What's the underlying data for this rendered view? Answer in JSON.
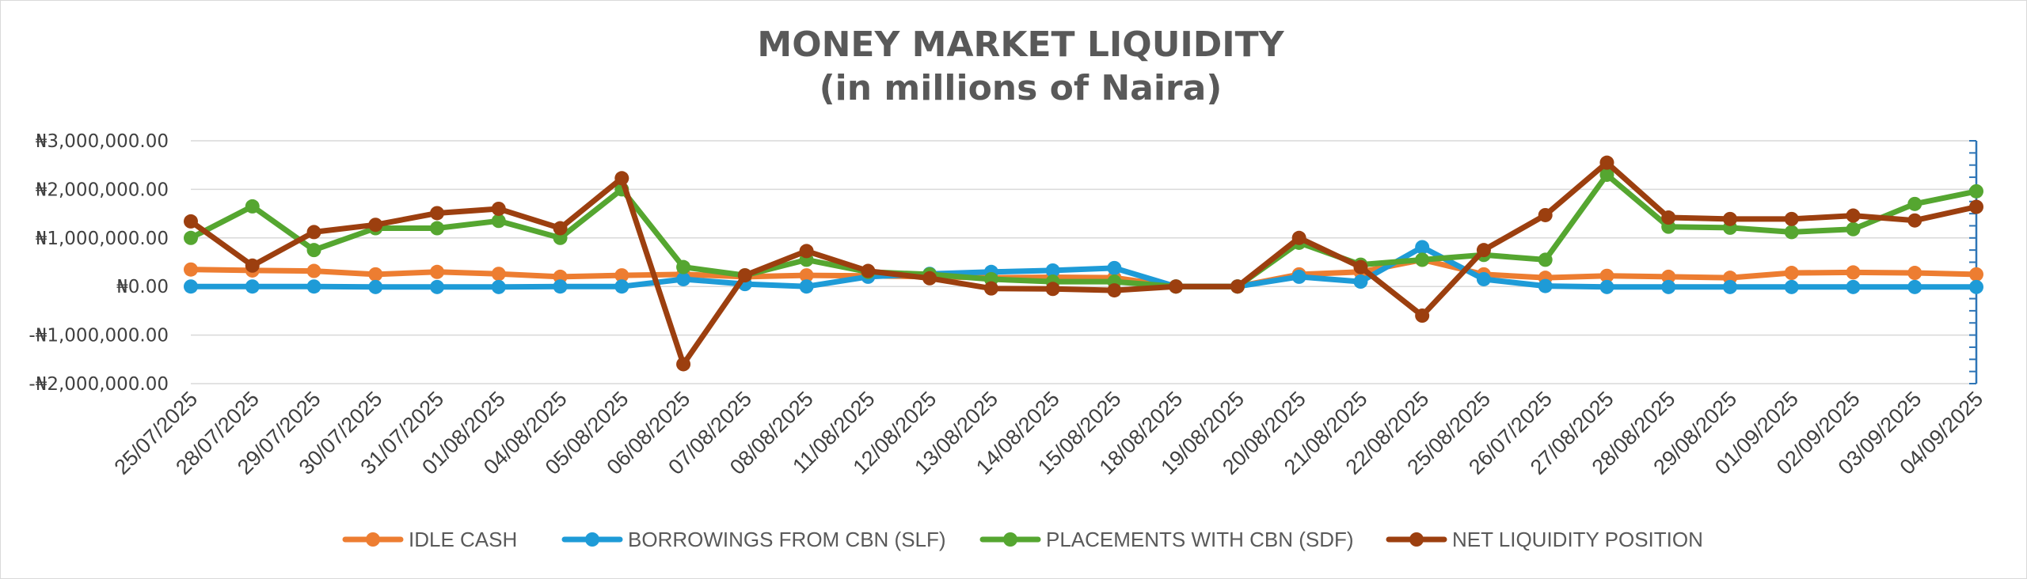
{
  "chart_data": {
    "type": "line",
    "title": "MONEY MARKET LIQUIDITY",
    "subtitle": "(in millions of Naira)",
    "xlabel": "",
    "ylabel": "",
    "ylim": [
      -2000000,
      3000000
    ],
    "grid": true,
    "legend_position": "bottom",
    "y_ticks": [
      {
        "value": 3000000,
        "label": "₦3,000,000.00"
      },
      {
        "value": 2000000,
        "label": "₦2,000,000.00"
      },
      {
        "value": 1000000,
        "label": "₦1,000,000.00"
      },
      {
        "value": 0,
        "label": "₦0.00"
      },
      {
        "value": -1000000,
        "label": "-₦1,000,000.00"
      },
      {
        "value": -2000000,
        "label": "-₦2,000,000.00"
      }
    ],
    "categories": [
      "25/07/2025",
      "28/07/2025",
      "29/07/2025",
      "30/07/2025",
      "31/07/2025",
      "01/08/2025",
      "04/08/2025",
      "05/08/2025",
      "06/08/2025",
      "07/08/2025",
      "08/08/2025",
      "11/08/2025",
      "12/08/2025",
      "13/08/2025",
      "14/08/2025",
      "15/08/2025",
      "18/08/2025",
      "19/08/2025",
      "20/08/2025",
      "21/08/2025",
      "22/08/2025",
      "25/08/2025",
      "26/07/2025",
      "27/08/2025",
      "28/08/2025",
      "29/08/2025",
      "01/09/2025",
      "02/09/2025",
      "03/09/2025",
      "04/09/2025"
    ],
    "series": [
      {
        "name": "IDLE CASH",
        "color": "#ED7D31",
        "values": [
          350000,
          330000,
          320000,
          250000,
          300000,
          260000,
          200000,
          230000,
          250000,
          200000,
          230000,
          220000,
          200000,
          180000,
          190000,
          180000,
          0,
          0,
          250000,
          300000,
          550000,
          250000,
          180000,
          220000,
          200000,
          180000,
          280000,
          290000,
          280000,
          250000
        ]
      },
      {
        "name": "BORROWINGS FROM CBN (SLF)",
        "color": "#1E9BD7",
        "values": [
          0,
          0,
          0,
          -10000,
          -10000,
          -10000,
          0,
          0,
          150000,
          50000,
          0,
          200000,
          260000,
          300000,
          330000,
          380000,
          0,
          0,
          200000,
          100000,
          810000,
          150000,
          10000,
          -10000,
          -10000,
          -10000,
          -10000,
          -10000,
          -10000,
          -10000
        ]
      },
      {
        "name": "PLACEMENTS WITH CBN (SDF)",
        "color": "#55A630",
        "values": [
          1000000,
          1650000,
          750000,
          1200000,
          1200000,
          1350000,
          1000000,
          2000000,
          400000,
          230000,
          550000,
          300000,
          250000,
          150000,
          100000,
          100000,
          0,
          0,
          900000,
          450000,
          550000,
          650000,
          550000,
          2300000,
          1230000,
          1210000,
          1120000,
          1180000,
          1700000,
          1960000
        ]
      },
      {
        "name": "NET LIQUIDITY POSITION",
        "color": "#9C3F0F",
        "values": [
          1340000,
          430000,
          1120000,
          1270000,
          1510000,
          1600000,
          1200000,
          2230000,
          -1600000,
          230000,
          730000,
          320000,
          170000,
          -40000,
          -50000,
          -80000,
          0,
          0,
          1000000,
          400000,
          -600000,
          750000,
          1470000,
          2550000,
          1420000,
          1390000,
          1390000,
          1460000,
          1360000,
          1640000
        ]
      }
    ]
  }
}
